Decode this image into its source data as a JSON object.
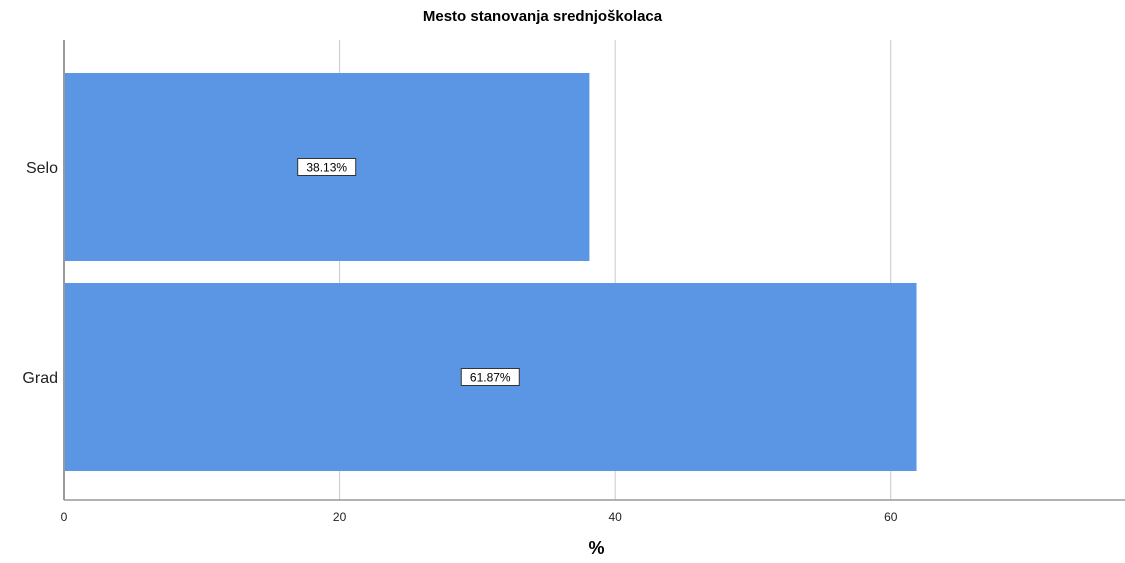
{
  "chart_data": {
    "type": "bar",
    "orientation": "horizontal",
    "title": "Mesto stanovanja srednjoškolaca",
    "xlabel": "%",
    "ylabel": "",
    "categories": [
      "Selo",
      "Grad"
    ],
    "values": [
      38.13,
      61.87
    ],
    "data_labels": [
      "38.13%",
      "61.87%"
    ],
    "xlim": [
      0,
      77
    ],
    "xticks": [
      0,
      20,
      40,
      60
    ],
    "grid": true,
    "bar_color": "#5a96e3"
  }
}
